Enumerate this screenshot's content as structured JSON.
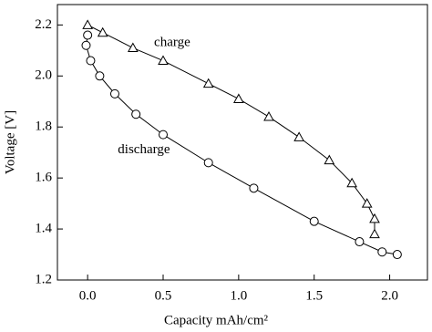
{
  "chart_data": {
    "type": "scatter",
    "xlabel": "Capacity mAh/cm²",
    "ylabel": "Voltage [V]",
    "xlim": [
      -0.2,
      2.25
    ],
    "ylim": [
      1.2,
      2.28
    ],
    "xticks": [
      {
        "value": 0,
        "label": "0.0"
      },
      0.5,
      {
        "value": 1,
        "label": "1.0"
      },
      1.5,
      {
        "value": 2,
        "label": "2.0"
      }
    ],
    "yticks": [
      1.2,
      1.4,
      1.6,
      1.8,
      {
        "value": 2,
        "label": "2.0"
      },
      2.2
    ],
    "series": [
      {
        "marker": "triangle",
        "color": "#000000",
        "x": [
          0,
          0.1,
          0.3,
          0.5,
          0.8,
          1.0,
          1.2,
          1.4,
          1.6,
          1.75,
          1.85,
          1.9,
          1.9
        ],
        "values": [
          2.2,
          2.17,
          2.11,
          2.06,
          1.97,
          1.91,
          1.84,
          1.76,
          1.67,
          1.58,
          1.5,
          1.44,
          1.38
        ]
      },
      {
        "marker": "circle",
        "color": "#000000",
        "x": [
          0,
          -0.01,
          0.02,
          0.08,
          0.18,
          0.32,
          0.5,
          0.8,
          1.1,
          1.5,
          1.8,
          1.95,
          2.05
        ],
        "values": [
          2.16,
          2.12,
          2.06,
          2.0,
          1.93,
          1.85,
          1.77,
          1.66,
          1.56,
          1.43,
          1.35,
          1.31,
          1.3
        ]
      }
    ],
    "annotations": [
      {
        "text": "charge",
        "x": 0.44,
        "y": 2.13
      },
      {
        "text": "discharge",
        "x": 0.2,
        "y": 1.71
      }
    ]
  }
}
